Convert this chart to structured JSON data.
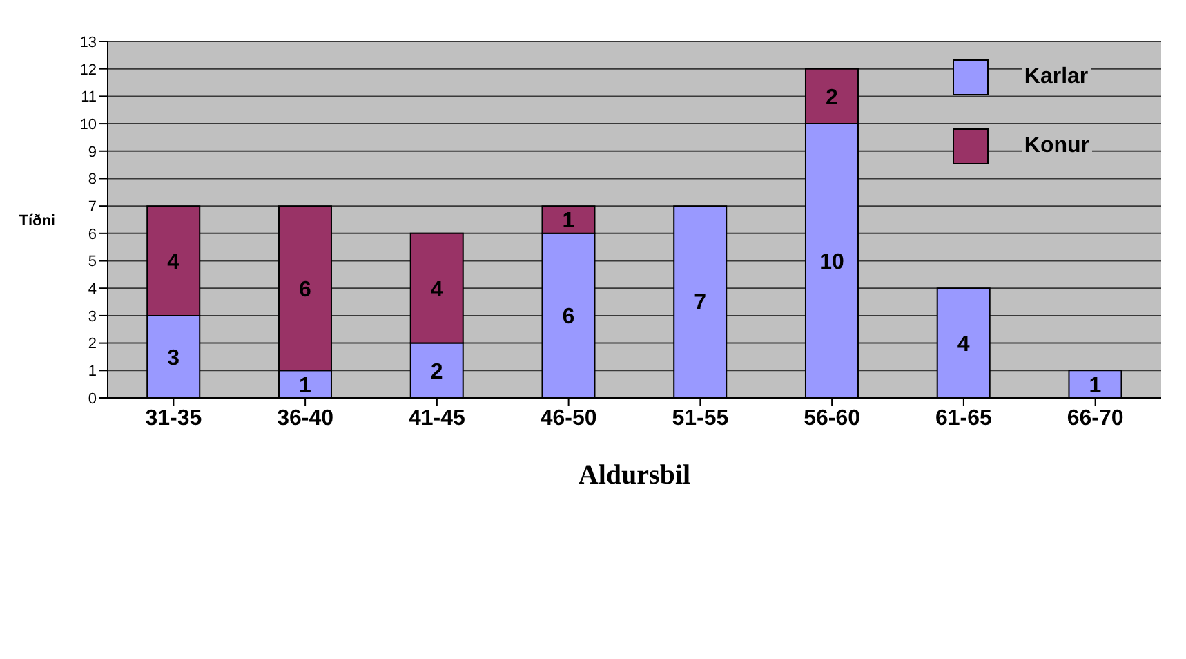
{
  "chart_data": {
    "type": "bar",
    "stacked": true,
    "xlabel": "Aldursbil",
    "ylabel": "Tíðni",
    "categories": [
      "31-35",
      "36-40",
      "41-45",
      "46-50",
      "51-55",
      "56-60",
      "61-65",
      "66-70"
    ],
    "series": [
      {
        "name": "Karlar",
        "color": "#9999ff",
        "values": [
          3,
          1,
          2,
          6,
          7,
          10,
          4,
          1
        ]
      },
      {
        "name": "Konur",
        "color": "#993366",
        "values": [
          4,
          6,
          4,
          1,
          null,
          2,
          null,
          null
        ]
      }
    ],
    "ylim": [
      0,
      13
    ],
    "yticks": [
      0,
      1,
      2,
      3,
      4,
      5,
      6,
      7,
      8,
      9,
      10,
      11,
      12,
      13
    ],
    "grid": "y",
    "legend": "top right",
    "data_labels": true
  }
}
